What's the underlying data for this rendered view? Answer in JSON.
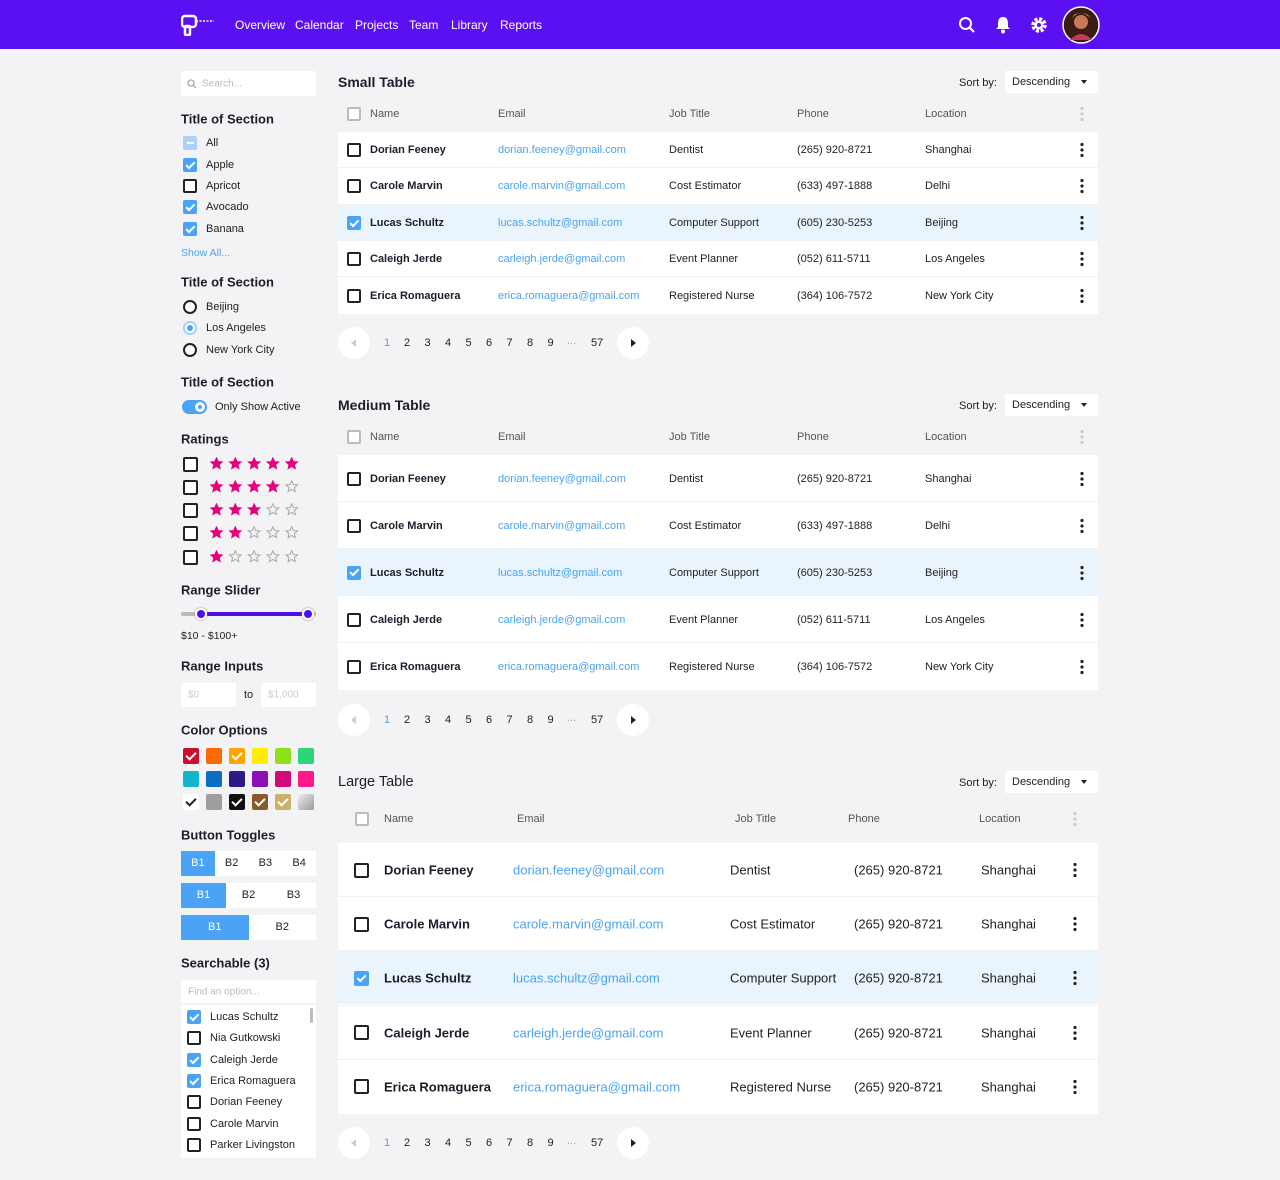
{
  "nav": {
    "links": [
      "Overview",
      "Calendar",
      "Projects",
      "Team",
      "Library",
      "Reports"
    ]
  },
  "filters": {
    "search_placeholder": "Search...",
    "checkbox_section": {
      "title": "Title of Section",
      "options": [
        {
          "label": "All",
          "state": "partial"
        },
        {
          "label": "Apple",
          "state": "checked"
        },
        {
          "label": "Apricot",
          "state": "unchecked"
        },
        {
          "label": "Avocado",
          "state": "checked"
        },
        {
          "label": "Banana",
          "state": "checked"
        }
      ],
      "show_all": "Show All..."
    },
    "radio_section": {
      "title": "Title of Section",
      "options": [
        "Beijing",
        "Los Angeles",
        "New York City"
      ],
      "selected": 1
    },
    "toggle_section": {
      "title": "Title of Section",
      "toggle": {
        "label": "Only Show Active",
        "on": true
      }
    },
    "ratings": {
      "title": "Ratings",
      "options": [
        5,
        4,
        3,
        2,
        1
      ]
    },
    "range_slider": {
      "title": "Range Slider",
      "label": "$10 - $100+"
    },
    "range_inputs": {
      "title": "Range Inputs",
      "min_placeholder": "$0",
      "separator": "to",
      "max_placeholder": "$1,000"
    },
    "color_options": {
      "title": "Color Options",
      "colors": [
        {
          "color": "#c8102e",
          "checked": true
        },
        {
          "color": "#ff6a00",
          "checked": false
        },
        {
          "color": "#ffa500",
          "checked": true
        },
        {
          "color": "#ffee00",
          "checked": false
        },
        {
          "color": "#8fe01c",
          "checked": false
        },
        {
          "color": "#2ed47a",
          "checked": false
        },
        {
          "color": "#12b5cb",
          "checked": false
        },
        {
          "color": "#0a6ebd",
          "checked": false
        },
        {
          "color": "#2e1a87",
          "checked": false
        },
        {
          "color": "#8b10b7",
          "checked": false
        },
        {
          "color": "#d4097a",
          "checked": false
        },
        {
          "color": "#ff1a8c",
          "checked": false
        },
        {
          "color": "#ffffff",
          "checked": true
        },
        {
          "color": "#9e9e9e",
          "checked": false
        },
        {
          "color": "#111111",
          "checked": true
        },
        {
          "color": "#8b5a2b",
          "checked": true
        },
        {
          "color": "#c9b36b",
          "checked": true
        },
        {
          "color": "#c0c0c0",
          "checked": false
        }
      ]
    },
    "button_toggles": {
      "title": "Button Toggles",
      "groups": [
        {
          "buttons": [
            "B1",
            "B2",
            "B3",
            "B4"
          ],
          "selected": 0
        },
        {
          "buttons": [
            "B1",
            "B2",
            "B3"
          ],
          "selected": 0
        },
        {
          "buttons": [
            "B1",
            "B2"
          ],
          "selected": 0
        }
      ]
    },
    "searchable": {
      "title": "Searchable (3)",
      "placeholder": "Find an option...",
      "options": [
        {
          "label": "Lucas Schultz",
          "checked": true
        },
        {
          "label": "Nia Gutkowski",
          "checked": false
        },
        {
          "label": "Caleigh Jerde",
          "checked": true
        },
        {
          "label": "Erica Romaguera",
          "checked": true
        },
        {
          "label": "Dorian Feeney",
          "checked": false
        },
        {
          "label": "Carole Marvin",
          "checked": false
        },
        {
          "label": "Parker Livingston",
          "checked": false
        }
      ]
    }
  },
  "tables": [
    {
      "title": "Small Table",
      "sort_label": "Sort by:",
      "sort_value": "Descending",
      "columns": [
        "Name",
        "Email",
        "Job Title",
        "Phone",
        "Location"
      ],
      "rows": [
        [
          "Dorian Feeney",
          "dorian.feeney@gmail.com",
          "Dentist",
          "(265) 920-8721",
          "Shanghai"
        ],
        [
          "Carole Marvin",
          "carole.marvin@gmail.com",
          "Cost Estimator",
          "(633) 497-1888",
          "Delhi"
        ],
        [
          "Lucas Schultz",
          "lucas.schultz@gmail.com",
          "Computer Support",
          "(605) 230-5253",
          "Beijing"
        ],
        [
          "Caleigh Jerde",
          "carleigh.jerde@gmail.com",
          "Event Planner",
          "(052) 611-5711",
          "Los Angeles"
        ],
        [
          "Erica Romaguera",
          "erica.romaguera@gmail.com",
          "Registered Nurse",
          "(364) 106-7572",
          "New York City"
        ]
      ],
      "selected_row": 2,
      "pages": [
        1,
        2,
        3,
        4,
        5,
        6,
        7,
        8,
        9,
        "...",
        57
      ],
      "current_page": 1
    },
    {
      "title": "Medium Table",
      "sort_label": "Sort by:",
      "sort_value": "Descending",
      "columns": [
        "Name",
        "Email",
        "Job Title",
        "Phone",
        "Location"
      ],
      "rows": [
        [
          "Dorian Feeney",
          "dorian.feeney@gmail.com",
          "Dentist",
          "(265) 920-8721",
          "Shanghai"
        ],
        [
          "Carole Marvin",
          "carole.marvin@gmail.com",
          "Cost Estimator",
          "(633) 497-1888",
          "Delhi"
        ],
        [
          "Lucas Schultz",
          "lucas.schultz@gmail.com",
          "Computer Support",
          "(605) 230-5253",
          "Beijing"
        ],
        [
          "Caleigh Jerde",
          "carleigh.jerde@gmail.com",
          "Event Planner",
          "(052) 611-5711",
          "Los Angeles"
        ],
        [
          "Erica Romaguera",
          "erica.romaguera@gmail.com",
          "Registered Nurse",
          "(364) 106-7572",
          "New York City"
        ]
      ],
      "selected_row": 2,
      "pages": [
        1,
        2,
        3,
        4,
        5,
        6,
        7,
        8,
        9,
        "...",
        57
      ],
      "current_page": 1
    },
    {
      "title": "Large Table",
      "sort_label": "Sort by:",
      "sort_value": "Descending",
      "columns": [
        "Name",
        "Email",
        "Job Title",
        "Phone",
        "Location"
      ],
      "rows": [
        [
          "Dorian Feeney",
          "dorian.feeney@gmail.com",
          "Dentist",
          "(265) 920-8721",
          "Shanghai"
        ],
        [
          "Carole Marvin",
          "carole.marvin@gmail.com",
          "Cost Estimator",
          "(265) 920-8721",
          "Shanghai"
        ],
        [
          "Lucas Schultz",
          "lucas.schultz@gmail.com",
          "Computer Support",
          "(265) 920-8721",
          "Shanghai"
        ],
        [
          "Caleigh Jerde",
          "carleigh.jerde@gmail.com",
          "Event Planner",
          "(265) 920-8721",
          "Shanghai"
        ],
        [
          "Erica Romaguera",
          "erica.romaguera@gmail.com",
          "Registered Nurse",
          "(265) 920-8721",
          "Shanghai"
        ]
      ],
      "selected_row": 2,
      "pages": [
        1,
        2,
        3,
        4,
        5,
        6,
        7,
        8,
        9,
        "...",
        57
      ],
      "current_page": 1
    }
  ]
}
